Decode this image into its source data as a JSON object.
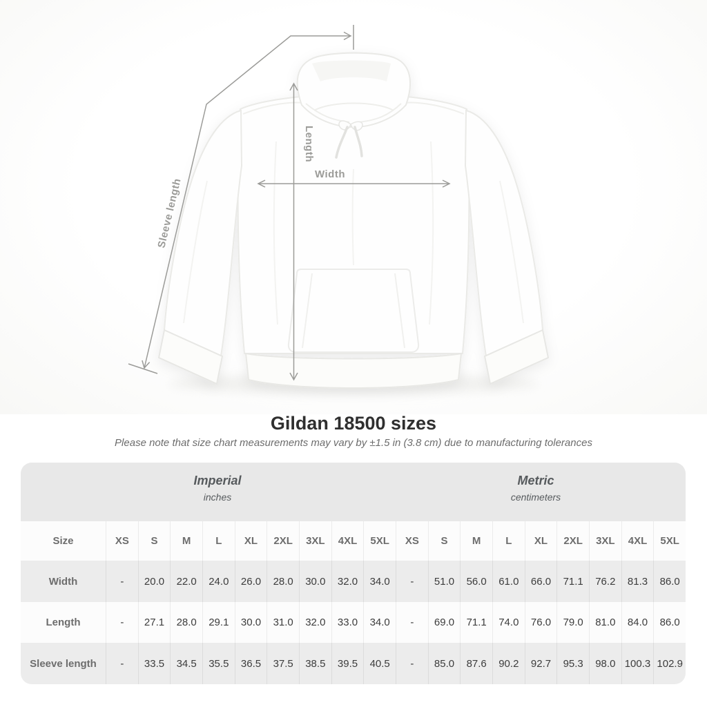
{
  "page": {
    "title": "Gildan 18500 sizes",
    "subtitle": "Please note that size chart measurements may vary by ±1.5 in (3.8 cm) due to manufacturing tolerances"
  },
  "diagram": {
    "product": "white pullover hoodie, front view",
    "length_label": "Length",
    "width_label": "Width",
    "sleeve_length_label": "Sleeve length"
  },
  "chart_data": {
    "type": "table",
    "title": "Gildan 18500 sizes",
    "subtitle": "Please note that size chart measurements may vary by ±1.5 in (3.8 cm) due to manufacturing tolerances",
    "size_column_header": "Size",
    "groups": [
      {
        "name": "Imperial",
        "unit": "inches"
      },
      {
        "name": "Metric",
        "unit": "centimeters"
      }
    ],
    "sizes": [
      "XS",
      "S",
      "M",
      "L",
      "XL",
      "2XL",
      "3XL",
      "4XL",
      "5XL"
    ],
    "rows": [
      {
        "label": "Width",
        "imperial": [
          "-",
          "20.0",
          "22.0",
          "24.0",
          "26.0",
          "28.0",
          "30.0",
          "32.0",
          "34.0"
        ],
        "metric": [
          "-",
          "51.0",
          "56.0",
          "61.0",
          "66.0",
          "71.1",
          "76.2",
          "81.3",
          "86.0"
        ]
      },
      {
        "label": "Length",
        "imperial": [
          "-",
          "27.1",
          "28.0",
          "29.1",
          "30.0",
          "31.0",
          "32.0",
          "33.0",
          "34.0"
        ],
        "metric": [
          "-",
          "69.0",
          "71.1",
          "74.0",
          "76.0",
          "79.0",
          "81.0",
          "84.0",
          "86.0"
        ]
      },
      {
        "label": "Sleeve length",
        "imperial": [
          "-",
          "33.5",
          "34.5",
          "35.5",
          "36.5",
          "37.5",
          "38.5",
          "39.5",
          "40.5"
        ],
        "metric": [
          "-",
          "85.0",
          "87.6",
          "90.2",
          "92.7",
          "95.3",
          "98.0",
          "100.3",
          "102.9"
        ]
      }
    ]
  },
  "colors": {
    "band_gray": "#e8e8e8",
    "row_alt_gray": "#ececec",
    "row_white": "#fcfcfc",
    "dimension_line": "#9b9b98",
    "title_text": "#2f2f2f",
    "number_text": "#3c3c3c",
    "header_text": "#6d6d6d"
  }
}
